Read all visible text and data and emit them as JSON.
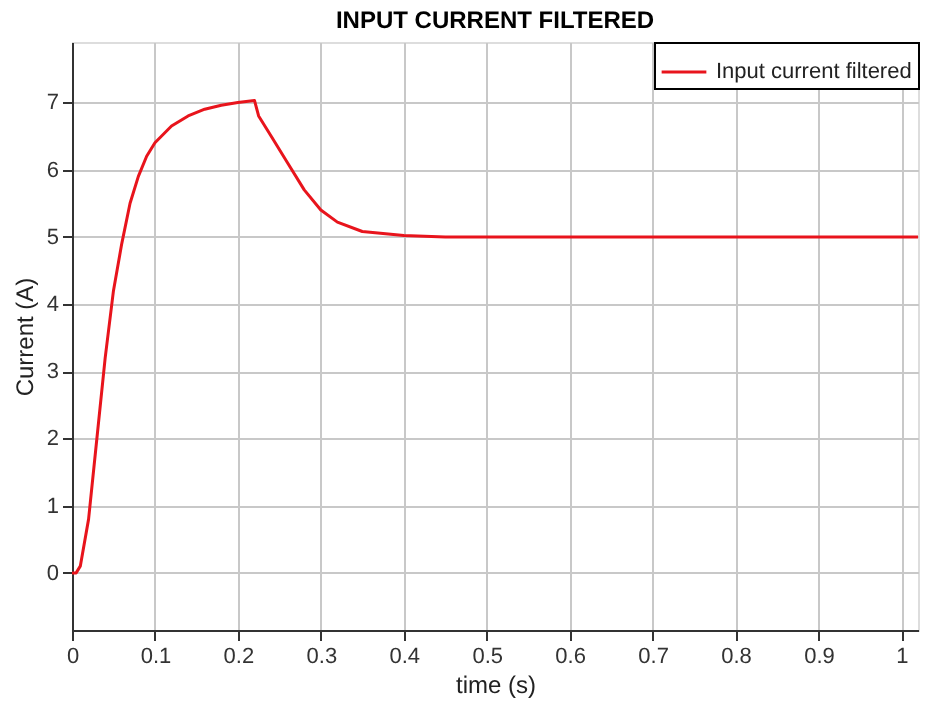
{
  "chart_data": {
    "type": "line",
    "title": "INPUT CURRENT FILTERED",
    "xlabel": "time (s)",
    "ylabel": "Current (A)",
    "x": [
      0,
      0.005,
      0.01,
      0.02,
      0.03,
      0.04,
      0.05,
      0.06,
      0.07,
      0.08,
      0.09,
      0.1,
      0.12,
      0.14,
      0.16,
      0.18,
      0.2,
      0.22,
      0.225,
      0.24,
      0.26,
      0.28,
      0.3,
      0.32,
      0.35,
      0.4,
      0.45,
      0.5,
      0.7,
      1.02
    ],
    "series": [
      {
        "name": "Input current filtered",
        "color": "#e8141c",
        "values": [
          0,
          0,
          0.1,
          0.8,
          2.0,
          3.2,
          4.2,
          4.9,
          5.5,
          5.9,
          6.2,
          6.4,
          6.65,
          6.8,
          6.9,
          6.96,
          7.0,
          7.03,
          6.8,
          6.5,
          6.1,
          5.7,
          5.4,
          5.22,
          5.08,
          5.02,
          5.0,
          5.0,
          5.0,
          5.0
        ]
      }
    ],
    "xlim": [
      0,
      1.02
    ],
    "xticks": [
      0,
      0.1,
      0.2,
      0.3,
      0.4,
      0.5,
      0.6,
      0.7,
      0.8,
      0.9,
      1
    ],
    "ylim": [
      -0.85,
      7.9
    ],
    "yticks": [
      0,
      1,
      2,
      3,
      4,
      5,
      6,
      7
    ],
    "grid": true,
    "legend": "top right",
    "marker": "none",
    "line_style": "solid"
  }
}
